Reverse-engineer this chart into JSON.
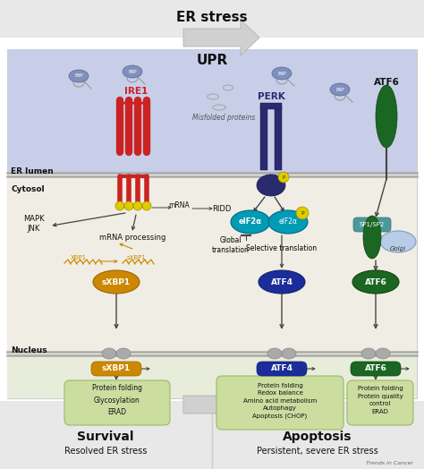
{
  "title_top": "ER stress",
  "title_upr": "UPR",
  "bg_top": "#e8e8e8",
  "bg_er_lumen": "#c8cee8",
  "bg_cytosol": "#f0ede4",
  "bg_nucleus": "#e8ecda",
  "bg_bottom": "#e8e8e8",
  "ire1_color": "#cc2222",
  "perk_color": "#2a2a6e",
  "atf6_color": "#1a6622",
  "sxbp1_color": "#cc8800",
  "atf4_color": "#1a2d99",
  "eif2a_color": "#009bb5",
  "bip_color": "#8090bb",
  "arrow_color": "#444444",
  "text_dark": "#111111",
  "box_green": "#ccdda0",
  "phospho_color": "#ddcc00",
  "survival_text": "Survival",
  "survival_sub": "Resolved ER stress",
  "apoptosis_text": "Apoptosis",
  "apoptosis_sub": "Persistent, severe ER stress",
  "brand": "Trends in Cancer",
  "figsize": [
    4.74,
    5.24
  ],
  "dpi": 100
}
